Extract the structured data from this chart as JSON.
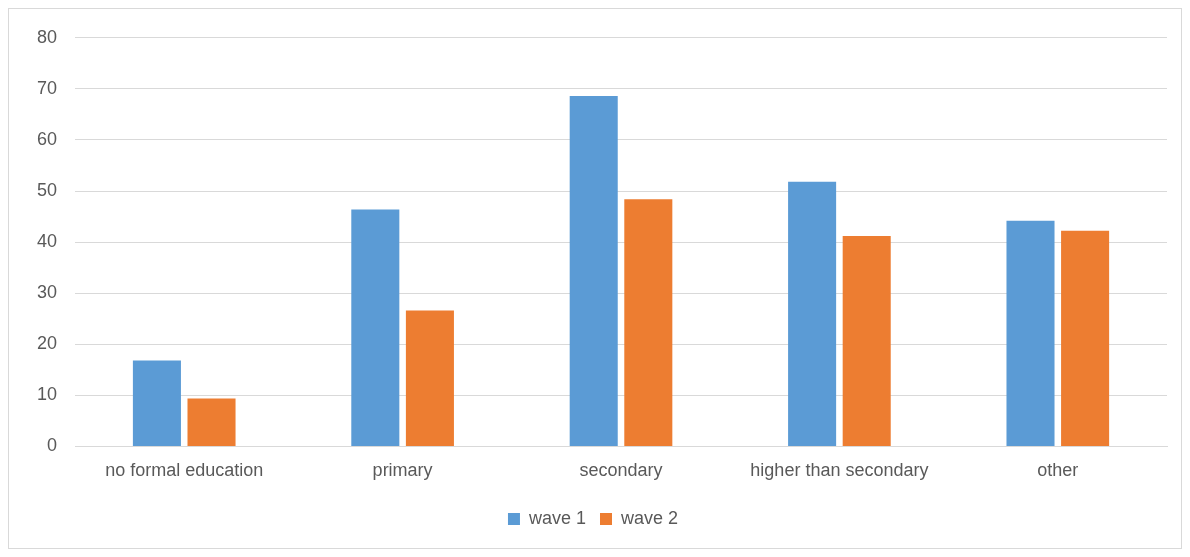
{
  "chart_data": {
    "type": "bar",
    "categories": [
      "no formal education",
      "primary",
      "secondary",
      "higher than secondary",
      "other"
    ],
    "series": [
      {
        "name": "wave 1",
        "color": "#5b9bd5",
        "values": [
          16.8,
          46.4,
          68.6,
          51.8,
          44.2
        ]
      },
      {
        "name": "wave 2",
        "color": "#ed7d31",
        "values": [
          9.4,
          26.6,
          48.4,
          41.2,
          42.2
        ]
      }
    ],
    "ylim": [
      0,
      80
    ],
    "yticks": [
      0,
      10,
      20,
      30,
      40,
      50,
      60,
      70,
      80
    ],
    "grid": "y",
    "legend": "bottom"
  }
}
